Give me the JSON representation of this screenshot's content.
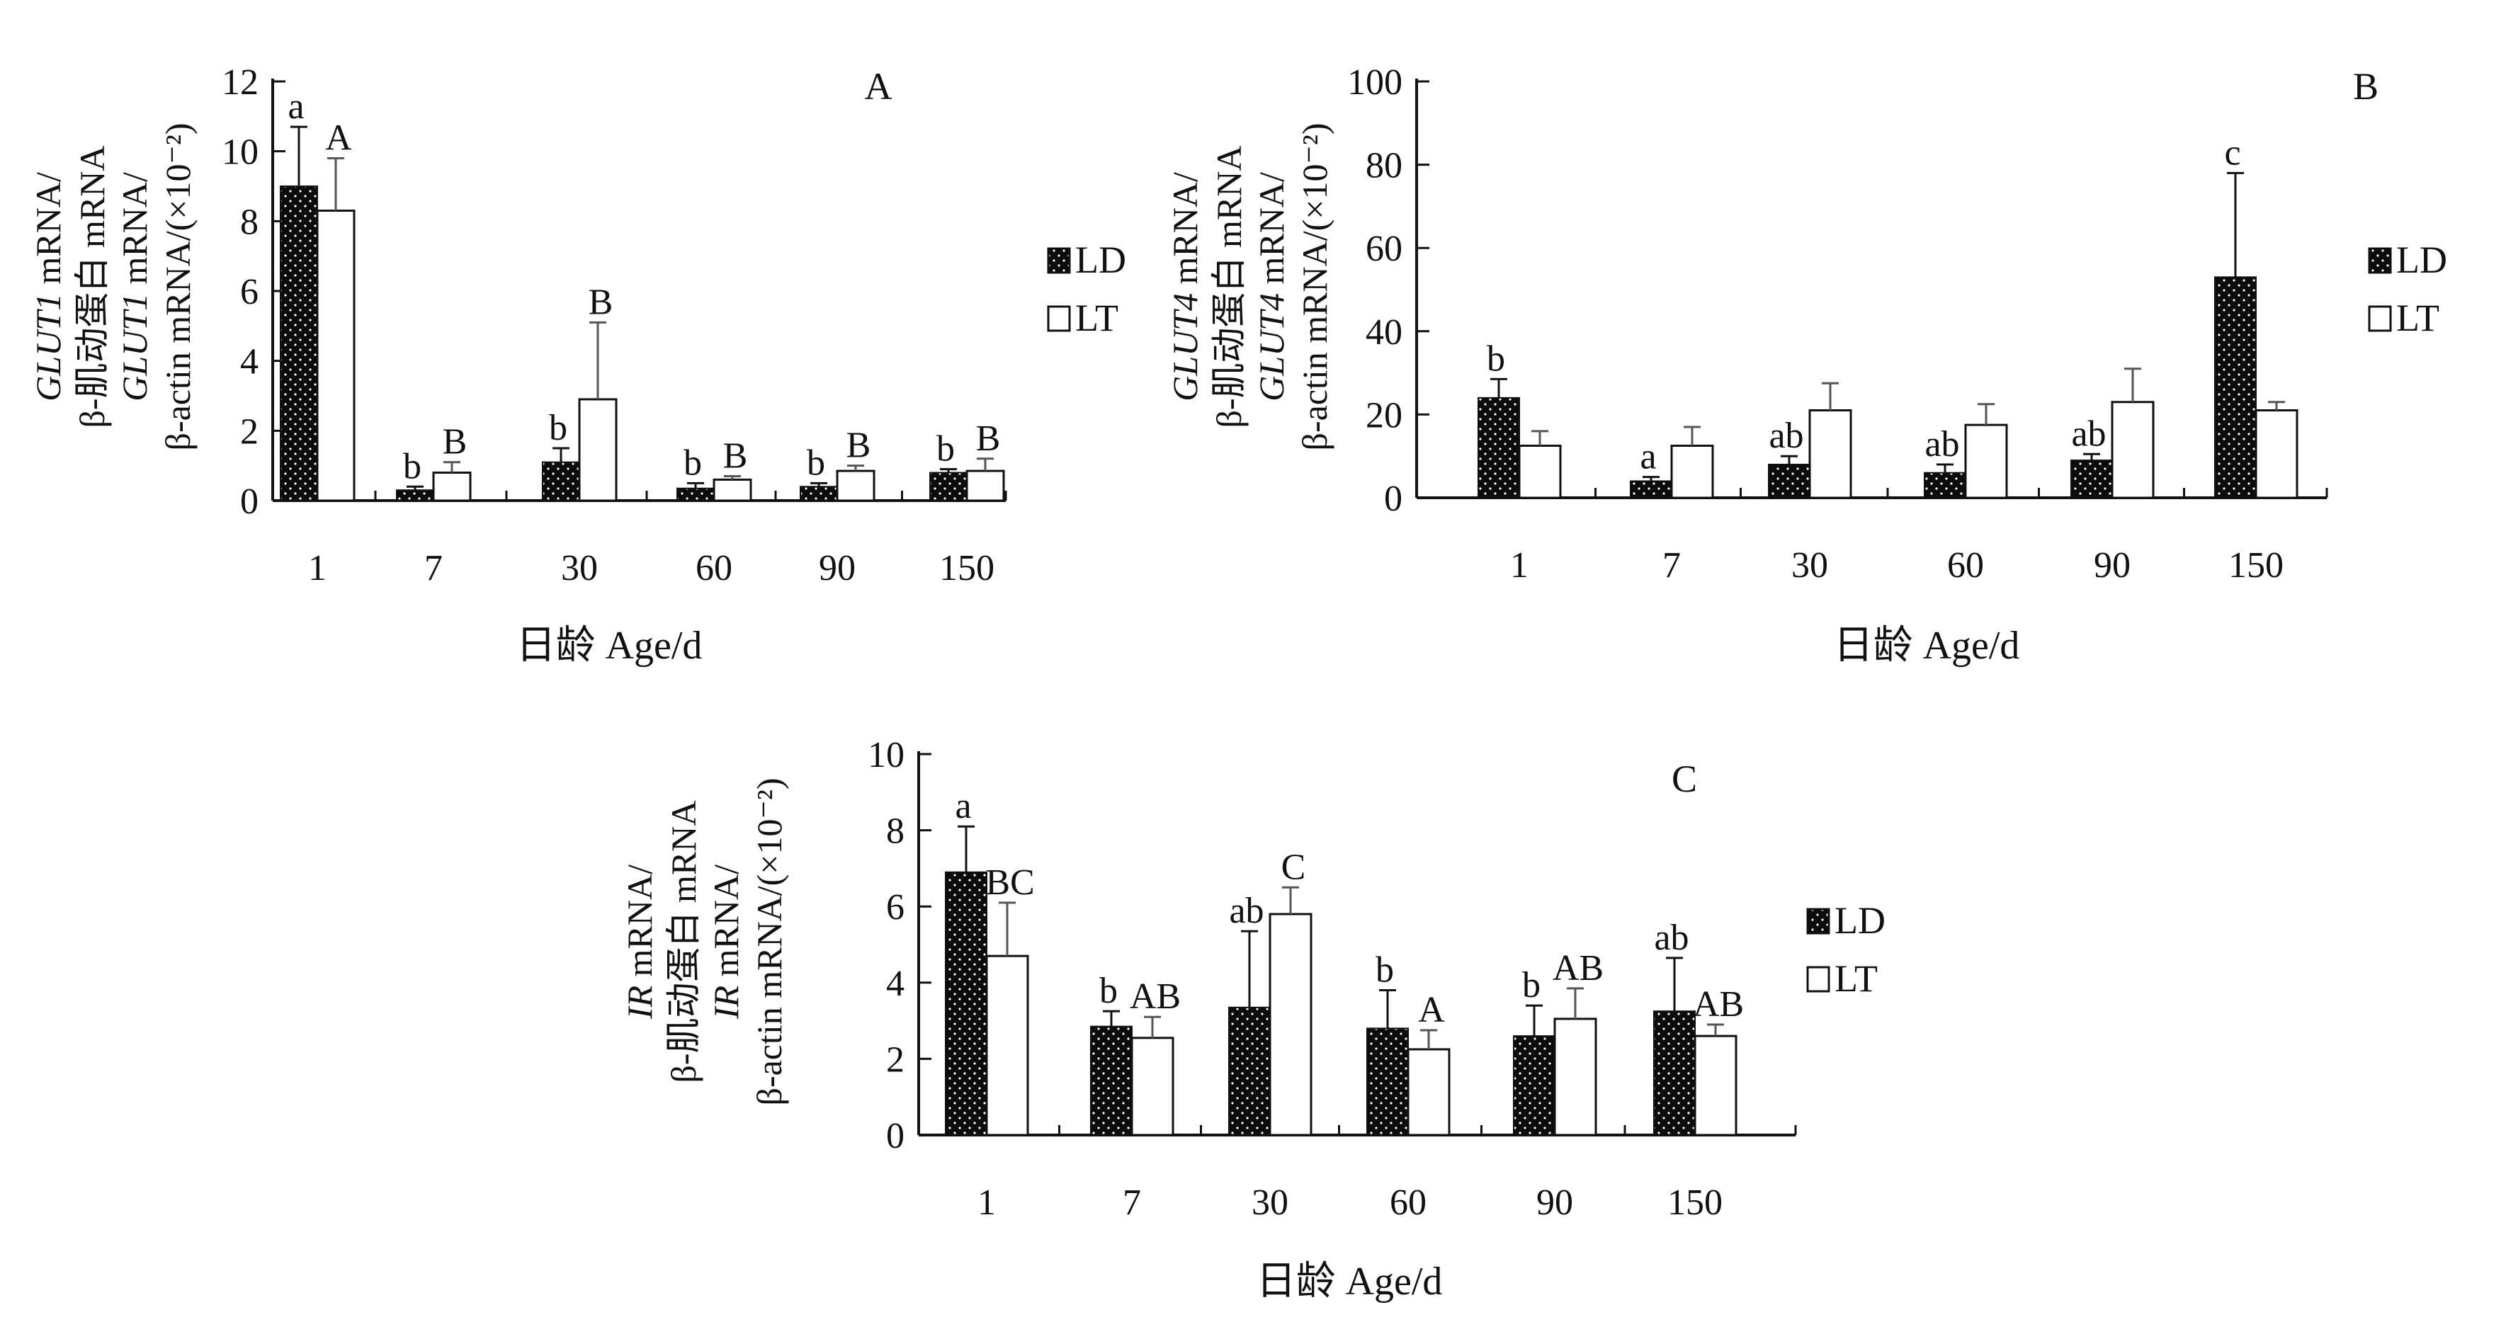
{
  "chart_data": [
    {
      "type": "bar",
      "panel": "A",
      "categories": [
        "1",
        "7",
        "30",
        "60",
        "90",
        "150"
      ],
      "ylim": [
        0,
        12
      ],
      "yticks": [
        0,
        2,
        4,
        6,
        8,
        10,
        12
      ],
      "grid": false,
      "legend": "right",
      "ylabel_lines": [
        {
          "italic": "GLUT1",
          "text": " mRNA/"
        },
        {
          "italic": "",
          "text": "β-肌动蛋白 mRNA"
        },
        {
          "italic": "GLUT1",
          "text": " mRNA/"
        },
        {
          "italic": "",
          "text": "β-actin mRNA/(×10⁻²)"
        }
      ],
      "xlabel": "日龄 Age/d",
      "series": [
        {
          "name": "LD",
          "values": [
            9.0,
            0.3,
            1.1,
            0.35,
            0.4,
            0.8
          ],
          "errors": [
            1.7,
            0.1,
            0.4,
            0.15,
            0.1,
            0.1
          ],
          "labels": [
            "a",
            "b",
            "b",
            "b",
            "b",
            "b"
          ]
        },
        {
          "name": "LT",
          "values": [
            8.3,
            0.8,
            2.9,
            0.6,
            0.85,
            0.85
          ],
          "errors": [
            1.5,
            0.3,
            2.2,
            0.1,
            0.15,
            0.35
          ],
          "labels": [
            "A",
            "B",
            "B",
            "B",
            "B",
            "B"
          ]
        }
      ]
    },
    {
      "type": "bar",
      "panel": "B",
      "categories": [
        "1",
        "7",
        "30",
        "60",
        "90",
        "150"
      ],
      "ylim": [
        0,
        100
      ],
      "yticks": [
        0,
        20,
        40,
        60,
        80,
        100
      ],
      "grid": false,
      "legend": "right",
      "ylabel_lines": [
        {
          "italic": "GLUT4",
          "text": " mRNA/"
        },
        {
          "italic": "",
          "text": "β-肌动蛋白 mRNA"
        },
        {
          "italic": "GLUT4",
          "text": " mRNA/"
        },
        {
          "italic": "",
          "text": "β-actin mRNA/(×10⁻²)"
        }
      ],
      "xlabel": "日龄 Age/d",
      "series": [
        {
          "name": "LD",
          "values": [
            24,
            4,
            8,
            6,
            9,
            53
          ],
          "errors": [
            4.5,
            1,
            2,
            2,
            1.5,
            25
          ],
          "labels": [
            "b",
            "a",
            "ab",
            "ab",
            "ab",
            "c"
          ]
        },
        {
          "name": "LT",
          "values": [
            12.5,
            12.5,
            21,
            17.5,
            23,
            21
          ],
          "errors": [
            3.5,
            4.5,
            6.5,
            5,
            8,
            2
          ]
        }
      ]
    },
    {
      "type": "bar",
      "panel": "C",
      "categories": [
        "1",
        "7",
        "30",
        "60",
        "90",
        "150"
      ],
      "ylim": [
        0,
        10
      ],
      "yticks": [
        0,
        2,
        4,
        6,
        8,
        10
      ],
      "grid": false,
      "legend": "right",
      "ylabel_lines": [
        {
          "italic": "IR",
          "text": " mRNA/"
        },
        {
          "italic": "",
          "text": "β-肌动蛋白 mRNA"
        },
        {
          "italic": "IR",
          "text": " mRNA/"
        },
        {
          "italic": "",
          "text": "β-actin mRNA/(×10⁻²)"
        }
      ],
      "xlabel": "日龄 Age/d",
      "series": [
        {
          "name": "LD",
          "values": [
            6.9,
            2.85,
            3.35,
            2.8,
            2.6,
            3.25
          ],
          "errors": [
            1.2,
            0.4,
            2.0,
            1.0,
            0.8,
            1.4
          ],
          "labels": [
            "a",
            "b",
            "ab",
            "b",
            "b",
            "ab"
          ]
        },
        {
          "name": "LT",
          "values": [
            4.7,
            2.55,
            5.8,
            2.25,
            3.05,
            2.6
          ],
          "errors": [
            1.4,
            0.55,
            0.7,
            0.5,
            0.8,
            0.3
          ],
          "labels": [
            "BC",
            "AB",
            "C",
            "A",
            "AB",
            "AB"
          ]
        }
      ]
    }
  ]
}
